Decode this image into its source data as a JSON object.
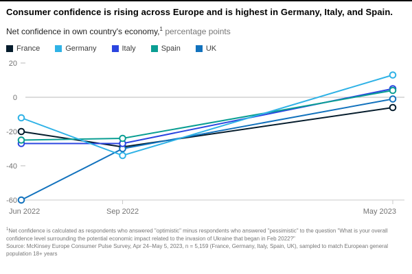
{
  "header": {
    "title": "Consumer confidence is rising across Europe and is highest in Germany, Italy, and Spain.",
    "subtitle_main": "Net confidence in own country's economy,",
    "subtitle_sup": "1",
    "subtitle_unit": " percentage points"
  },
  "chart_data": {
    "type": "line",
    "title": "Net confidence in own country's economy, percentage points",
    "categories": [
      "Jun 2022",
      "Sep 2022",
      "May 2023"
    ],
    "x_months": [
      0,
      3,
      11
    ],
    "series": [
      {
        "name": "France",
        "color": "#051c2c",
        "values": [
          -20,
          -29,
          -6
        ]
      },
      {
        "name": "Germany",
        "color": "#2fb2e6",
        "values": [
          -12,
          -34,
          13
        ]
      },
      {
        "name": "Italy",
        "color": "#2b45e0",
        "values": [
          -27,
          -27,
          5
        ]
      },
      {
        "name": "Spain",
        "color": "#0a9e93",
        "values": [
          -25,
          -24,
          4
        ]
      },
      {
        "name": "UK",
        "color": "#1272bd",
        "values": [
          -60,
          -30,
          -1
        ]
      }
    ],
    "ylim": [
      -60,
      20
    ],
    "yticks": [
      20,
      0,
      -20,
      -40,
      -60
    ],
    "grid": "zero-line-only",
    "legend_position": "top",
    "marker": "open-circle"
  },
  "footnote": {
    "sup": "1",
    "text": "Net confidence is calculated as respondents who answered \"optimistic\" minus respondents who answered \"pessimistic\" to the question \"What is your overall confidence level surrounding the potential economic impact related to the invasion of Ukraine that began in Feb 2022?\"",
    "source": "Source: McKinsey Europe Consumer Pulse Survey, Apr 24–May 5, 2023, n = 5,159 (France, Germany, Italy, Spain, UK), sampled to match European general population 18+ years"
  }
}
